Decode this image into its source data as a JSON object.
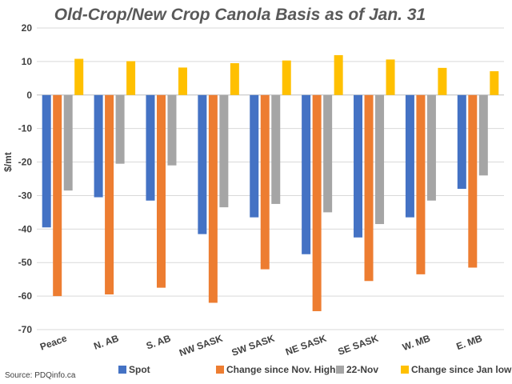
{
  "chart_data": {
    "type": "bar",
    "title": "Old-Crop/New Crop Canola Basis as of Jan. 31",
    "ylabel": "$/mt",
    "xlabel": "",
    "ylim": [
      -70,
      20
    ],
    "ytick_step": 10,
    "grid": true,
    "legend_position": "bottom",
    "categories": [
      "Peace",
      "N. AB",
      "S. AB",
      "NW SASK",
      "SW SASK",
      "NE SASK",
      "SE SASK",
      "W. MB",
      "E. MB"
    ],
    "series": [
      {
        "name": "Spot",
        "color": "#4472c4",
        "values": [
          -39.5,
          -30.5,
          -31.5,
          -41.5,
          -36.5,
          -47.5,
          -42.5,
          -36.5,
          -28.0
        ]
      },
      {
        "name": "Change since Nov. High",
        "color": "#ed7d31",
        "values": [
          -60.0,
          -59.5,
          -57.5,
          -62.0,
          -52.0,
          -64.5,
          -55.5,
          -53.5,
          -51.5
        ]
      },
      {
        "name": "22-Nov",
        "color": "#a5a5a5",
        "values": [
          -28.5,
          -20.5,
          -21.0,
          -33.5,
          -32.5,
          -35.0,
          -38.5,
          -31.5,
          -24.0
        ]
      },
      {
        "name": "Change since Jan low",
        "color": "#ffc000",
        "values": [
          10.8,
          10.1,
          8.2,
          9.5,
          10.3,
          11.9,
          10.6,
          8.1,
          7.1
        ]
      }
    ]
  },
  "source": "Source: PDQinfo.ca"
}
